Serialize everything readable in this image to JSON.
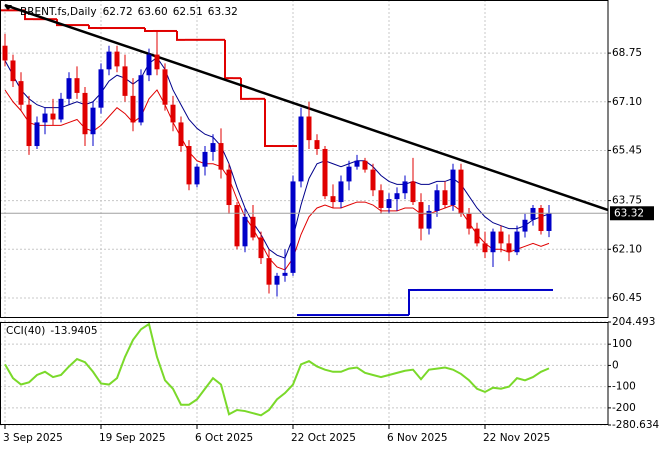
{
  "chart_data": [
    {
      "type": "candlestick",
      "title": "BRENT.fs,Daily",
      "header_values": [
        "62.72",
        "63.60",
        "62.51",
        "63.32"
      ],
      "categories": [
        "3 Sep 2025",
        null,
        null,
        null,
        null,
        null,
        null,
        null,
        null,
        null,
        null,
        null,
        "19 Sep 2025",
        null,
        null,
        null,
        null,
        null,
        null,
        null,
        null,
        null,
        null,
        null,
        "6 Oct 2025",
        null,
        null,
        null,
        null,
        null,
        null,
        null,
        null,
        null,
        null,
        null,
        "22 Oct 2025",
        null,
        null,
        null,
        null,
        null,
        null,
        null,
        null,
        null,
        null,
        null,
        "6 Nov 2025",
        null,
        null,
        null,
        null,
        null,
        null,
        null,
        null,
        null,
        null,
        null,
        "22 Nov 2025",
        null,
        null,
        null,
        null,
        null,
        null,
        null,
        null
      ],
      "ohlc": [
        [
          69.0,
          69.4,
          68.3,
          68.5
        ],
        [
          68.5,
          68.7,
          67.6,
          67.8
        ],
        [
          67.8,
          68.1,
          66.8,
          67.0
        ],
        [
          67.0,
          67.3,
          65.3,
          65.6
        ],
        [
          65.6,
          66.6,
          65.5,
          66.4
        ],
        [
          66.4,
          66.9,
          66.0,
          66.7
        ],
        [
          66.7,
          67.2,
          66.3,
          66.5
        ],
        [
          66.5,
          67.4,
          66.4,
          67.2
        ],
        [
          67.2,
          68.1,
          67.0,
          67.9
        ],
        [
          67.9,
          68.3,
          67.2,
          67.4
        ],
        [
          67.4,
          67.6,
          65.6,
          66.0
        ],
        [
          66.0,
          67.1,
          65.6,
          66.9
        ],
        [
          66.9,
          68.4,
          66.7,
          68.2
        ],
        [
          68.2,
          69.0,
          68.0,
          68.8
        ],
        [
          68.8,
          69.0,
          68.1,
          68.3
        ],
        [
          68.3,
          68.7,
          67.1,
          67.3
        ],
        [
          67.3,
          67.9,
          66.1,
          66.4
        ],
        [
          66.4,
          68.2,
          66.3,
          68.0
        ],
        [
          68.0,
          68.9,
          67.8,
          68.7
        ],
        [
          68.7,
          69.5,
          68.0,
          68.2
        ],
        [
          68.2,
          68.4,
          66.8,
          67.0
        ],
        [
          67.0,
          67.3,
          66.1,
          66.4
        ],
        [
          66.4,
          66.6,
          65.4,
          65.6
        ],
        [
          65.6,
          65.8,
          64.1,
          64.3
        ],
        [
          64.3,
          65.0,
          64.2,
          64.9
        ],
        [
          64.9,
          65.6,
          64.6,
          65.4
        ],
        [
          65.4,
          66.0,
          65.1,
          65.7
        ],
        [
          65.7,
          66.2,
          64.5,
          64.8
        ],
        [
          64.8,
          65.0,
          63.3,
          63.6
        ],
        [
          63.6,
          63.7,
          62.1,
          62.2
        ],
        [
          62.2,
          63.5,
          62.0,
          63.2
        ],
        [
          63.2,
          63.6,
          62.4,
          62.5
        ],
        [
          62.5,
          62.7,
          61.6,
          61.8
        ],
        [
          61.8,
          62.1,
          60.6,
          60.9
        ],
        [
          60.9,
          61.3,
          60.5,
          61.2
        ],
        [
          61.2,
          62.1,
          61.0,
          61.3
        ],
        [
          61.3,
          64.6,
          61.2,
          64.4
        ],
        [
          64.4,
          66.9,
          64.2,
          66.6
        ],
        [
          66.6,
          67.1,
          65.5,
          65.8
        ],
        [
          65.8,
          66.0,
          65.3,
          65.5
        ],
        [
          65.5,
          65.6,
          63.8,
          63.9
        ],
        [
          63.9,
          64.3,
          63.5,
          63.7
        ],
        [
          63.7,
          64.6,
          63.5,
          64.4
        ],
        [
          64.4,
          65.1,
          64.1,
          64.9
        ],
        [
          64.9,
          65.3,
          64.8,
          65.1
        ],
        [
          65.1,
          65.2,
          64.7,
          64.8
        ],
        [
          64.8,
          65.0,
          63.9,
          64.1
        ],
        [
          64.1,
          64.3,
          63.3,
          63.5
        ],
        [
          63.5,
          64.0,
          63.3,
          63.8
        ],
        [
          63.8,
          64.2,
          63.4,
          64.0
        ],
        [
          64.0,
          64.6,
          63.8,
          64.4
        ],
        [
          64.4,
          65.2,
          63.6,
          63.7
        ],
        [
          63.7,
          64.0,
          62.4,
          62.8
        ],
        [
          62.8,
          63.6,
          62.6,
          63.4
        ],
        [
          63.4,
          64.3,
          63.2,
          64.1
        ],
        [
          64.1,
          64.4,
          63.5,
          63.6
        ],
        [
          63.6,
          65.0,
          63.4,
          64.8
        ],
        [
          64.8,
          65.0,
          63.2,
          63.3
        ],
        [
          63.3,
          63.5,
          62.6,
          62.8
        ],
        [
          62.8,
          63.0,
          62.2,
          62.3
        ],
        [
          62.3,
          62.7,
          61.8,
          62.0
        ],
        [
          62.0,
          62.8,
          61.5,
          62.7
        ],
        [
          62.7,
          62.9,
          62.0,
          62.3
        ],
        [
          62.3,
          62.6,
          61.7,
          62.0
        ],
        [
          62.0,
          62.9,
          61.9,
          62.7
        ],
        [
          62.7,
          63.3,
          62.5,
          63.1
        ],
        [
          63.1,
          63.6,
          62.9,
          63.5
        ],
        [
          63.5,
          63.6,
          62.6,
          62.72
        ],
        [
          62.72,
          63.6,
          62.51,
          63.32
        ]
      ],
      "up_color": "#0000c8",
      "down_color": "#e00000",
      "overlays": [
        {
          "color": "#00008b",
          "values": [
            68.5,
            68.0,
            67.5,
            67.2,
            67.0,
            66.9,
            66.9,
            66.9,
            67.0,
            67.1,
            67.0,
            67.1,
            67.4,
            67.8,
            68.0,
            67.9,
            67.7,
            67.9,
            68.4,
            68.6,
            68.2,
            67.5,
            67.0,
            66.5,
            66.2,
            66.0,
            65.9,
            65.6,
            65.0,
            64.2,
            63.5,
            63.0,
            62.6,
            62.1,
            61.9,
            61.8,
            62.5,
            63.6,
            64.5,
            65.0,
            65.1,
            65.0,
            64.9,
            65.0,
            65.1,
            65.1,
            64.9,
            64.6,
            64.4,
            64.3,
            64.3,
            64.4,
            64.3,
            64.3,
            64.4,
            64.4,
            64.5,
            64.3,
            63.9,
            63.5,
            63.2,
            63.0,
            62.9,
            62.8,
            62.8,
            62.9,
            63.1,
            63.2,
            63.3
          ]
        },
        {
          "color": "#e00000",
          "values": [
            67.5,
            67.1,
            66.8,
            66.4,
            66.3,
            66.3,
            66.3,
            66.3,
            66.4,
            66.5,
            66.2,
            66.1,
            66.3,
            66.6,
            66.9,
            66.7,
            66.4,
            66.6,
            67.2,
            67.5,
            67.0,
            66.4,
            65.9,
            65.4,
            65.1,
            65.0,
            65.0,
            64.9,
            64.5,
            63.8,
            63.2,
            62.8,
            62.3,
            61.8,
            61.5,
            61.4,
            61.8,
            62.6,
            63.2,
            63.5,
            63.6,
            63.5,
            63.5,
            63.6,
            63.7,
            63.7,
            63.6,
            63.4,
            63.4,
            63.4,
            63.5,
            63.5,
            63.3,
            63.3,
            63.4,
            63.5,
            63.6,
            63.4,
            63.0,
            62.6,
            62.3,
            62.1,
            62.1,
            62.0,
            62.1,
            62.2,
            62.3,
            62.2,
            62.3
          ]
        }
      ],
      "steps": [
        {
          "color": "#e00000",
          "values": [
            70.2,
            70.2,
            70.2,
            69.9,
            69.9,
            69.9,
            69.9,
            69.7,
            69.7,
            69.7,
            69.7,
            69.6,
            69.6,
            69.6,
            69.6,
            69.6,
            69.6,
            69.6,
            69.5,
            69.5,
            69.5,
            69.5,
            69.2,
            69.2,
            69.2,
            69.2,
            69.2,
            69.2,
            67.9,
            67.9,
            67.2,
            67.2,
            67.2,
            65.6,
            65.6,
            65.6,
            65.6,
            null,
            null,
            null,
            null,
            null,
            null,
            null,
            null,
            null,
            null,
            null,
            null,
            null,
            null,
            null,
            null,
            null,
            null,
            null,
            null,
            null,
            null,
            null,
            null,
            null,
            null,
            null,
            null,
            null,
            null,
            null,
            null
          ]
        },
        {
          "color": "#0000c8",
          "values": [
            null,
            null,
            null,
            null,
            null,
            null,
            null,
            null,
            null,
            null,
            null,
            null,
            null,
            null,
            null,
            null,
            null,
            null,
            null,
            null,
            null,
            null,
            null,
            null,
            null,
            null,
            null,
            null,
            null,
            null,
            null,
            null,
            null,
            null,
            null,
            null,
            null,
            59.87,
            59.87,
            59.87,
            59.87,
            59.87,
            59.87,
            59.87,
            59.87,
            59.87,
            59.87,
            59.87,
            59.87,
            59.87,
            59.87,
            60.72,
            60.72,
            60.72,
            60.72,
            60.72,
            60.72,
            60.72,
            60.72,
            60.72,
            60.72,
            60.72,
            60.72,
            60.72,
            60.72,
            60.72,
            60.72,
            60.72,
            60.72
          ]
        }
      ],
      "trendline": {
        "color": "#000000",
        "x": [
          0,
          75.4
        ],
        "values": [
          70.38,
          63.43
        ]
      },
      "ylim": [
        59.77,
        70.55
      ],
      "yticks": [
        60.45,
        {
          "value": 62.1,
          "label": "62.10"
        },
        63.75,
        65.45,
        {
          "value": 67.1,
          "label": "67.10"
        },
        68.75
      ],
      "grid": true
    },
    {
      "type": "line",
      "title": "CCI(40)",
      "series": [
        {
          "color": "#7ad92a",
          "values": [
            5,
            -60,
            -90,
            -80,
            -45,
            -30,
            -55,
            -45,
            -5,
            30,
            15,
            -30,
            -85,
            -90,
            -60,
            40,
            120,
            170,
            195,
            40,
            -70,
            -110,
            -185,
            -185,
            -160,
            -110,
            -60,
            -90,
            -230,
            -210,
            -215,
            -225,
            -235,
            -210,
            -160,
            -130,
            -90,
            5,
            20,
            -5,
            -20,
            -30,
            -30,
            -15,
            -10,
            -35,
            -45,
            -55,
            -45,
            -35,
            -25,
            -20,
            -65,
            -20,
            -15,
            -10,
            -20,
            -40,
            -70,
            -110,
            -125,
            -105,
            -110,
            -100,
            -60,
            -70,
            -55,
            -30,
            -13.9405
          ]
        }
      ],
      "ylim": [
        -280.634,
        204.493
      ],
      "yticks": [
        -280.634,
        -200,
        -100,
        0,
        100,
        204.493
      ],
      "grid": true
    }
  ]
}
